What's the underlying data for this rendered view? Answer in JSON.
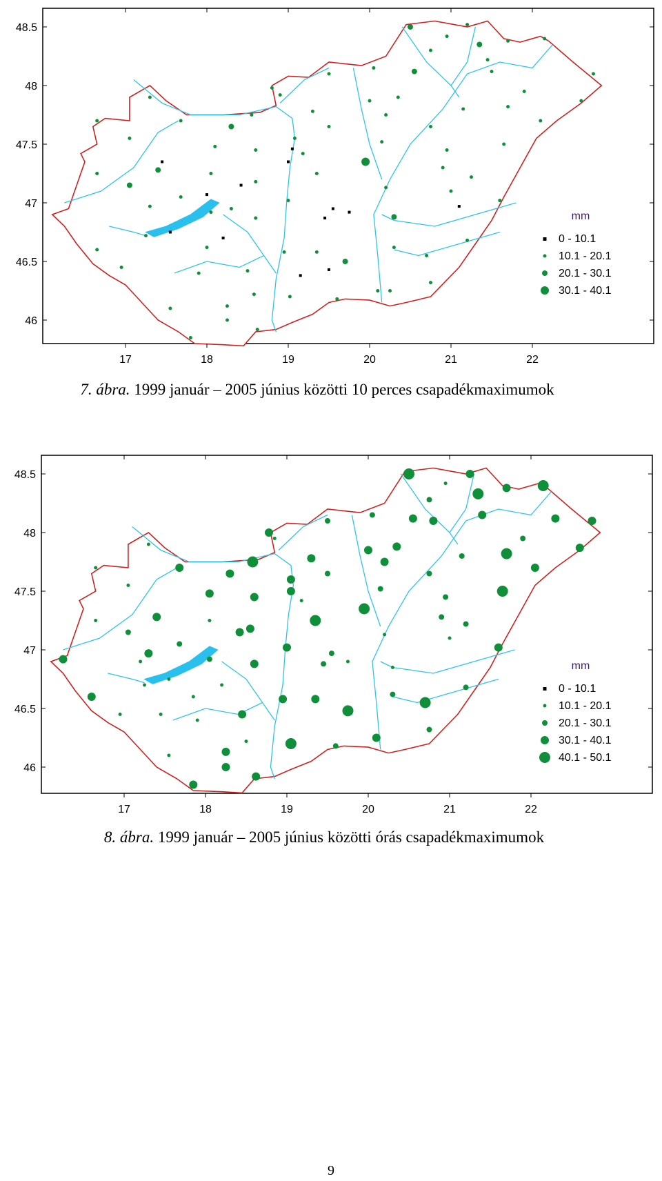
{
  "colors": {
    "border": "#cc2222",
    "river": "#2ec4e6",
    "lake": "#29c0ee",
    "station_marker": "#0f8f3a",
    "low_marker": "#000000",
    "legend_title": "#3a1f6b"
  },
  "maps": [
    {
      "x_ticks": [
        "17",
        "18",
        "19",
        "20",
        "21",
        "22"
      ],
      "y_ticks": [
        "48.5",
        "48",
        "47.5",
        "47",
        "46.5",
        "46"
      ],
      "legend": {
        "title": "mm",
        "items": [
          {
            "label": "0  -  10.1",
            "marker": "square-black"
          },
          {
            "label": "10.1  -  20.1",
            "marker": "dot-small"
          },
          {
            "label": "20.1  -  30.1",
            "marker": "dot-medium"
          },
          {
            "label": "30.1  -  40.1",
            "marker": "dot-large"
          }
        ]
      },
      "caption": {
        "prefix": "7. ábra.",
        "text": " 1999 január – 2005 június közötti 10 perces csapadékmaximumok"
      }
    },
    {
      "x_ticks": [
        "17",
        "18",
        "19",
        "20",
        "21",
        "22"
      ],
      "y_ticks": [
        "48.5",
        "48",
        "47.5",
        "47",
        "46.5",
        "46"
      ],
      "legend": {
        "title": "mm",
        "items": [
          {
            "label": "0  -  10.1",
            "marker": "square-black"
          },
          {
            "label": "10.1  -  20.1",
            "marker": "dot-small"
          },
          {
            "label": "20.1  -  30.1",
            "marker": "dot-medium"
          },
          {
            "label": "30.1  -  40.1",
            "marker": "dot-large"
          },
          {
            "label": "40.1  -  50.1",
            "marker": "dot-xlarge"
          }
        ]
      },
      "caption": {
        "prefix": "8. ábra.",
        "text": " 1999 január – 2005 június közötti órás csapadékmaximumok"
      }
    }
  ],
  "stations_map1": [
    [
      16.65,
      47.7,
      1
    ],
    [
      17.3,
      47.9,
      1
    ],
    [
      17.05,
      47.55,
      1
    ],
    [
      16.65,
      47.25,
      1
    ],
    [
      17.05,
      47.15,
      2
    ],
    [
      16.65,
      46.6,
      1
    ],
    [
      16.95,
      46.45,
      1
    ],
    [
      17.45,
      47.35,
      0
    ],
    [
      17.4,
      47.28,
      2
    ],
    [
      17.55,
      46.75,
      0
    ],
    [
      17.25,
      46.72,
      1
    ],
    [
      17.3,
      46.97,
      1
    ],
    [
      17.68,
      47.05,
      1
    ],
    [
      17.68,
      47.7,
      1
    ],
    [
      18.0,
      47.07,
      0
    ],
    [
      18.1,
      47.48,
      1
    ],
    [
      18.05,
      47.25,
      1
    ],
    [
      18.05,
      46.92,
      1
    ],
    [
      18.2,
      46.7,
      0
    ],
    [
      18.0,
      46.62,
      1
    ],
    [
      17.9,
      46.4,
      1
    ],
    [
      18.3,
      46.95,
      1
    ],
    [
      18.42,
      47.15,
      0
    ],
    [
      18.3,
      47.65,
      2
    ],
    [
      18.55,
      47.75,
      1
    ],
    [
      18.6,
      47.45,
      1
    ],
    [
      18.6,
      47.18,
      1
    ],
    [
      18.6,
      46.87,
      1
    ],
    [
      18.5,
      46.42,
      1
    ],
    [
      18.58,
      46.22,
      1
    ],
    [
      18.25,
      46.12,
      1
    ],
    [
      18.25,
      46.0,
      1
    ],
    [
      18.62,
      45.92,
      1
    ],
    [
      17.8,
      45.85,
      1
    ],
    [
      17.55,
      46.1,
      1
    ],
    [
      18.8,
      47.98,
      1
    ],
    [
      18.9,
      47.92,
      1
    ],
    [
      19.05,
      47.46,
      0
    ],
    [
      19.0,
      47.35,
      0
    ],
    [
      19.08,
      47.55,
      1
    ],
    [
      19.18,
      47.42,
      1
    ],
    [
      19.3,
      47.78,
      1
    ],
    [
      19.35,
      47.25,
      1
    ],
    [
      19.5,
      47.65,
      1
    ],
    [
      19.55,
      46.95,
      0
    ],
    [
      19.45,
      46.87,
      0
    ],
    [
      19.75,
      46.92,
      0
    ],
    [
      19.35,
      46.58,
      1
    ],
    [
      19.15,
      46.38,
      0
    ],
    [
      19.5,
      46.43,
      0
    ],
    [
      19.7,
      46.5,
      2
    ],
    [
      19.6,
      46.18,
      1
    ],
    [
      19.02,
      46.2,
      1
    ],
    [
      18.95,
      46.58,
      1
    ],
    [
      19.0,
      47.02,
      1
    ],
    [
      19.95,
      47.35,
      3
    ],
    [
      19.5,
      48.1,
      1
    ],
    [
      20.05,
      48.15,
      1
    ],
    [
      20.0,
      47.87,
      1
    ],
    [
      20.2,
      47.75,
      1
    ],
    [
      20.35,
      47.9,
      1
    ],
    [
      20.15,
      47.52,
      1
    ],
    [
      20.2,
      47.13,
      1
    ],
    [
      20.3,
      46.88,
      2
    ],
    [
      20.3,
      46.62,
      1
    ],
    [
      20.25,
      46.25,
      1
    ],
    [
      20.1,
      46.25,
      1
    ],
    [
      20.55,
      48.12,
      2
    ],
    [
      20.5,
      48.5,
      2
    ],
    [
      20.75,
      48.3,
      1
    ],
    [
      20.95,
      48.42,
      1
    ],
    [
      21.2,
      48.52,
      1
    ],
    [
      21.35,
      48.35,
      2
    ],
    [
      21.5,
      48.12,
      1
    ],
    [
      21.7,
      48.38,
      1
    ],
    [
      21.15,
      47.8,
      1
    ],
    [
      20.95,
      47.45,
      1
    ],
    [
      20.9,
      47.3,
      1
    ],
    [
      20.75,
      47.65,
      1
    ],
    [
      21.0,
      47.1,
      1
    ],
    [
      21.25,
      47.22,
      1
    ],
    [
      20.7,
      46.55,
      1
    ],
    [
      20.75,
      46.32,
      1
    ],
    [
      21.2,
      46.68,
      1
    ],
    [
      21.1,
      46.97,
      0
    ],
    [
      21.65,
      47.5,
      1
    ],
    [
      21.7,
      47.82,
      1
    ],
    [
      21.6,
      47.02,
      1
    ],
    [
      21.9,
      47.95,
      1
    ],
    [
      22.15,
      48.4,
      1
    ],
    [
      22.1,
      47.7,
      1
    ],
    [
      22.75,
      48.1,
      1
    ],
    [
      22.6,
      47.87,
      1
    ],
    [
      21.45,
      48.22,
      1
    ]
  ],
  "stations_map2": [
    [
      16.65,
      47.7,
      1
    ],
    [
      17.3,
      47.9,
      1
    ],
    [
      17.05,
      47.55,
      1
    ],
    [
      16.65,
      47.25,
      1
    ],
    [
      17.05,
      47.15,
      2
    ],
    [
      16.6,
      46.6,
      3
    ],
    [
      16.95,
      46.45,
      1
    ],
    [
      17.4,
      47.28,
      3
    ],
    [
      17.3,
      46.97,
      3
    ],
    [
      17.2,
      46.9,
      1
    ],
    [
      17.25,
      46.7,
      1
    ],
    [
      17.55,
      46.75,
      1
    ],
    [
      17.68,
      47.05,
      2
    ],
    [
      17.68,
      47.7,
      3
    ],
    [
      18.05,
      47.48,
      3
    ],
    [
      18.05,
      47.25,
      1
    ],
    [
      18.05,
      46.92,
      2
    ],
    [
      18.2,
      46.7,
      1
    ],
    [
      17.85,
      46.6,
      1
    ],
    [
      17.45,
      46.45,
      1
    ],
    [
      17.55,
      46.1,
      1
    ],
    [
      18.3,
      47.65,
      3
    ],
    [
      18.58,
      47.75,
      4
    ],
    [
      18.6,
      47.45,
      3
    ],
    [
      18.42,
      47.15,
      3
    ],
    [
      18.55,
      47.18,
      3
    ],
    [
      18.6,
      46.88,
      3
    ],
    [
      18.45,
      46.45,
      3
    ],
    [
      18.5,
      46.22,
      1
    ],
    [
      18.25,
      46.13,
      3
    ],
    [
      18.25,
      46.0,
      3
    ],
    [
      18.62,
      45.92,
      3
    ],
    [
      17.85,
      45.85,
      3
    ],
    [
      17.9,
      46.4,
      1
    ],
    [
      16.25,
      46.92,
      3
    ],
    [
      18.78,
      48.0,
      3
    ],
    [
      18.85,
      47.95,
      1
    ],
    [
      19.05,
      47.6,
      3
    ],
    [
      19.05,
      47.5,
      3
    ],
    [
      19.18,
      47.42,
      1
    ],
    [
      19.3,
      47.78,
      3
    ],
    [
      19.35,
      47.25,
      4
    ],
    [
      19.5,
      47.65,
      2
    ],
    [
      19.55,
      46.97,
      2
    ],
    [
      19.45,
      46.88,
      2
    ],
    [
      19.75,
      46.9,
      1
    ],
    [
      19.35,
      46.58,
      3
    ],
    [
      19.05,
      46.2,
      4
    ],
    [
      19.6,
      46.18,
      2
    ],
    [
      19.75,
      46.48,
      4
    ],
    [
      18.95,
      46.58,
      3
    ],
    [
      19.0,
      47.02,
      3
    ],
    [
      19.95,
      47.35,
      4
    ],
    [
      19.5,
      48.1,
      2
    ],
    [
      20.05,
      48.15,
      2
    ],
    [
      20.0,
      47.85,
      3
    ],
    [
      20.2,
      47.75,
      3
    ],
    [
      20.35,
      47.88,
      3
    ],
    [
      20.15,
      47.52,
      2
    ],
    [
      20.2,
      47.13,
      1
    ],
    [
      20.3,
      46.85,
      1
    ],
    [
      20.3,
      46.62,
      2
    ],
    [
      20.1,
      46.25,
      3
    ],
    [
      20.5,
      48.5,
      4
    ],
    [
      20.55,
      48.12,
      3
    ],
    [
      20.75,
      48.28,
      2
    ],
    [
      20.8,
      48.1,
      3
    ],
    [
      20.95,
      48.42,
      1
    ],
    [
      21.25,
      48.5,
      3
    ],
    [
      21.35,
      48.33,
      4
    ],
    [
      21.4,
      48.15,
      3
    ],
    [
      21.7,
      48.38,
      3
    ],
    [
      21.15,
      47.8,
      2
    ],
    [
      20.95,
      47.45,
      2
    ],
    [
      20.9,
      47.28,
      2
    ],
    [
      20.75,
      47.65,
      2
    ],
    [
      21.0,
      47.1,
      1
    ],
    [
      21.2,
      47.22,
      2
    ],
    [
      20.7,
      46.55,
      4
    ],
    [
      20.75,
      46.32,
      2
    ],
    [
      21.2,
      46.68,
      2
    ],
    [
      21.65,
      47.5,
      4
    ],
    [
      21.7,
      47.82,
      4
    ],
    [
      21.6,
      47.02,
      3
    ],
    [
      21.9,
      47.95,
      2
    ],
    [
      22.15,
      48.4,
      4
    ],
    [
      22.05,
      47.7,
      3
    ],
    [
      22.75,
      48.1,
      3
    ],
    [
      22.6,
      47.87,
      3
    ],
    [
      22.3,
      48.12,
      3
    ]
  ],
  "page_number": "9"
}
